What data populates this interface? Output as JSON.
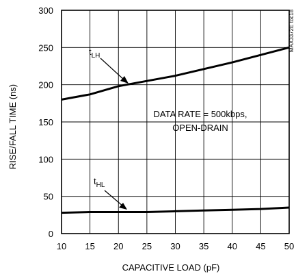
{
  "chart_data": {
    "type": "line",
    "title": "",
    "xlabel": "CAPACITIVE LOAD (pF)",
    "ylabel": "RISE/FALL TIME (ns)",
    "xlim": [
      10,
      50
    ],
    "ylim": [
      0,
      300
    ],
    "x_ticks": [
      10,
      15,
      20,
      25,
      30,
      35,
      40,
      45,
      50
    ],
    "y_ticks": [
      0,
      50,
      100,
      150,
      200,
      250,
      300
    ],
    "grid": true,
    "series": [
      {
        "name": "t_LH",
        "label_main": "t",
        "label_sub": "LH",
        "x": [
          10,
          15,
          20,
          25,
          30,
          35,
          40,
          45,
          50
        ],
        "y": [
          180,
          187,
          198,
          205,
          212,
          221,
          230,
          240,
          250
        ]
      },
      {
        "name": "t_HL",
        "label_main": "t",
        "label_sub": "HL",
        "x": [
          10,
          15,
          20,
          25,
          30,
          35,
          40,
          45,
          50
        ],
        "y": [
          28,
          29,
          29,
          29,
          30,
          31,
          32,
          33,
          35
        ]
      }
    ],
    "annotation_line1": "DATA RATE = 500kbps,",
    "annotation_line2": "OPEN-DRAIN",
    "side_code": "MAX3372E toc18"
  },
  "colors": {
    "line": "#000000",
    "grid": "#000000",
    "background": "#ffffff"
  }
}
